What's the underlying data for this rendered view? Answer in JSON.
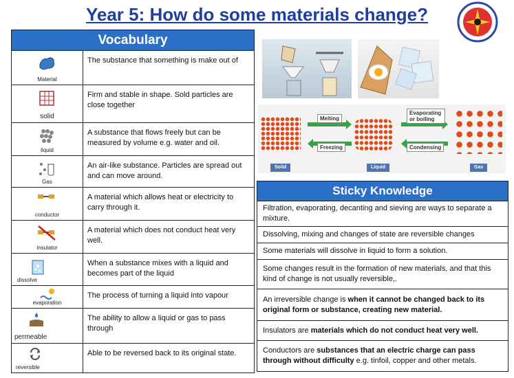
{
  "title": "Year 5: How do some materials change?",
  "vocabulary": {
    "heading": "Vocabulary",
    "rows": [
      {
        "label": "Material",
        "icon": "material-icon",
        "definition": "The substance that something is make out of"
      },
      {
        "label": "solid",
        "icon": "solid-icon",
        "definition": "Firm and stable in shape. Sold particles are close together"
      },
      {
        "label": "liquid",
        "icon": "liquid-icon",
        "definition": "A substance that flows freely but can be measured by volume e.g. water and oil."
      },
      {
        "label": "Gas",
        "icon": "gas-icon",
        "definition": "An air-like substance. Particles are spread out and can move around."
      },
      {
        "label": "conductor",
        "icon": "conductor-icon",
        "definition": "A material which allows heat or electricity to carry through it."
      },
      {
        "label": "insulator",
        "icon": "insulator-icon",
        "definition": "A material which does not conduct heat very well."
      },
      {
        "label": "dissolve",
        "icon": "dissolve-icon",
        "definition": "When a substance mixes with a liquid and becomes part of the liquid"
      },
      {
        "label": "evaporation",
        "icon": "evaporation-icon",
        "definition": "The process of turning a liquid into vapour"
      },
      {
        "label": "permeable",
        "icon": "permeable-icon",
        "definition": "The  ability to allow a liquid or gas to pass through"
      },
      {
        "label": "reversible",
        "icon": "reversible-icon",
        "definition": "Able to be reversed back to its original state."
      }
    ]
  },
  "states_diagram": {
    "melting": "Melting",
    "freezing": "Freezing",
    "evaporating": "Evaporating or boiling",
    "condensing": "Condensing",
    "solid": "Solid",
    "liquid": "Liquid",
    "gas": "Gas"
  },
  "sticky": {
    "heading": "Sticky Knowledge",
    "r1": "Filtration, evaporating, decanting and sieving are ways to separate a mixture.",
    "r2": "Dissolving, mixing and changes of state are  reversible changes",
    "r3": "Some materials will dissolve in liquid to form a solution.",
    "r4": "Some changes result in the formation of new  materials, and that this kind of change is not usually reversible,.",
    "r5_a": "An irreversible change is ",
    "r5_b": "when it cannot be changed back to its original form or substance, creating new material.",
    "r6_a": "Insulators are ",
    "r6_b": "materials which do not conduct heat very well.",
    "r7_a": "Conductors are ",
    "r7_b": "substances that an electric charge can pass through without difficulty",
    "r7_c": " e.g. tinfoil, copper and other metals."
  },
  "colors": {
    "title": "#1f3f9e",
    "header_blue": "#2c6fc9"
  }
}
